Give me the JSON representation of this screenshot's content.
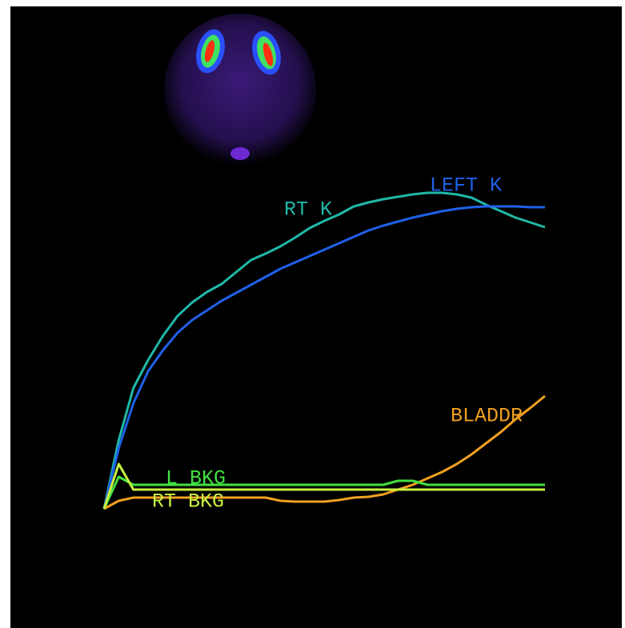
{
  "chart_data": {
    "type": "line",
    "x": [
      0,
      1,
      2,
      3,
      4,
      5,
      6,
      7,
      8,
      9,
      10,
      11,
      12,
      13,
      14,
      15,
      16,
      17,
      18,
      19,
      20,
      21,
      22,
      23,
      24,
      25,
      26,
      27,
      28,
      29,
      30
    ],
    "xlim": [
      0,
      30
    ],
    "ylim": [
      0,
      100
    ],
    "series": [
      {
        "name": "RT K",
        "color": "#1fb8a8",
        "values": [
          0,
          21.5,
          37.75,
          46.5,
          54,
          60.25,
          64.5,
          67.75,
          70.25,
          74,
          77.75,
          79.75,
          82,
          84.75,
          87.75,
          90,
          92,
          94.5,
          95.75,
          96.75,
          97.5,
          98.25,
          98.75,
          98.75,
          98.25,
          97.25,
          95,
          93,
          91,
          89.5,
          88
        ]
      },
      {
        "name": "LEFT K",
        "color": "#2060e8",
        "values": [
          0,
          19,
          33,
          43,
          49.5,
          55,
          59,
          62,
          65,
          67.5,
          70,
          72.5,
          75,
          77,
          79,
          81,
          83,
          85,
          87,
          88.5,
          89.75,
          91,
          92,
          93,
          93.75,
          94.25,
          94.5,
          94.5,
          94.5,
          94.25,
          94.25
        ]
      },
      {
        "name": "BLADDR",
        "color": "#f0a020",
        "values": [
          0,
          2.5,
          3.5,
          3.5,
          3.5,
          3.5,
          3.5,
          3.5,
          3.5,
          3.5,
          3.5,
          3.5,
          2.5,
          2.25,
          2.25,
          2.25,
          2.75,
          3.5,
          3.75,
          4.5,
          6,
          7.5,
          9.5,
          11.5,
          14,
          17,
          20.5,
          24,
          28,
          31.5,
          35.25
        ]
      },
      {
        "name": "L BKG",
        "color": "#40e040",
        "values": [
          0,
          10,
          7.5,
          7.5,
          7.5,
          7.5,
          7.5,
          7.5,
          7.5,
          7.5,
          7.5,
          7.5,
          7.5,
          7.5,
          7.5,
          7.5,
          7.5,
          7.5,
          7.5,
          7.5,
          8.75,
          8.75,
          7.5,
          7.5,
          7.5,
          7.5,
          7.5,
          7.5,
          7.5,
          7.5,
          7.5
        ]
      },
      {
        "name": "RT BKG",
        "color": "#c8f040",
        "values": [
          0,
          14,
          6,
          6,
          6,
          6,
          6,
          6,
          6,
          6,
          6,
          6,
          6,
          6,
          6,
          6,
          6,
          6,
          6,
          6,
          6,
          6,
          6,
          6,
          6,
          6,
          6,
          6,
          6,
          6,
          6
        ]
      }
    ]
  }
}
